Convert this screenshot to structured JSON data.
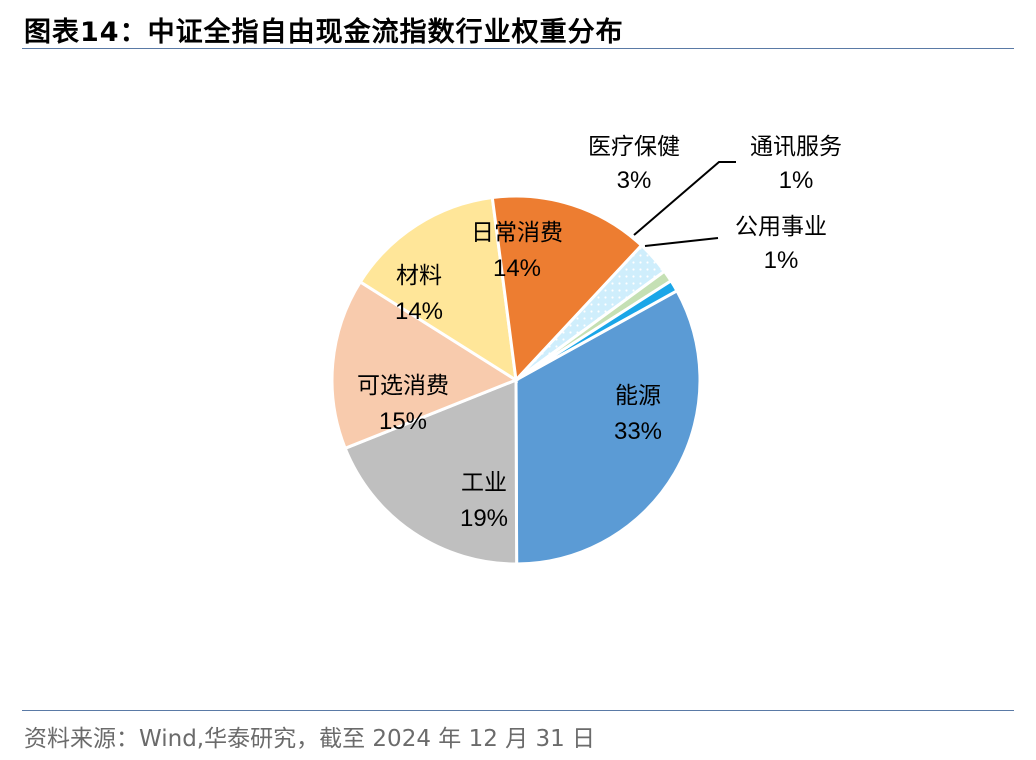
{
  "header": {
    "title": "图表14：中证全指自由现金流指数行业权重分布"
  },
  "footer": {
    "source": "资料来源：Wind,华泰研究，截至 2024 年 12 月 31 日"
  },
  "chart_data": {
    "type": "pie",
    "title": "",
    "start_angle_deg": 61,
    "direction": "clockwise",
    "slices": [
      {
        "name": "能源",
        "value": 33,
        "pct_label": "33%",
        "color": "#5b9bd5"
      },
      {
        "name": "工业",
        "value": 19,
        "pct_label": "19%",
        "color": "#bfbfbf"
      },
      {
        "name": "可选消费",
        "value": 15,
        "pct_label": "15%",
        "color": "#f8cbad"
      },
      {
        "name": "材料",
        "value": 14,
        "pct_label": "14%",
        "color": "#ffe699"
      },
      {
        "name": "日常消费",
        "value": 14,
        "pct_label": "14%",
        "color": "#ed7d31"
      },
      {
        "name": "医疗保健",
        "value": 3,
        "pct_label": "3%",
        "color": "#cfeefc",
        "pattern": "dots"
      },
      {
        "name": "通讯服务",
        "value": 1,
        "pct_label": "1%",
        "color": "#c5e0b4"
      },
      {
        "name": "公用事业",
        "value": 1,
        "pct_label": "1%",
        "color": "#1aa6e8"
      }
    ]
  }
}
